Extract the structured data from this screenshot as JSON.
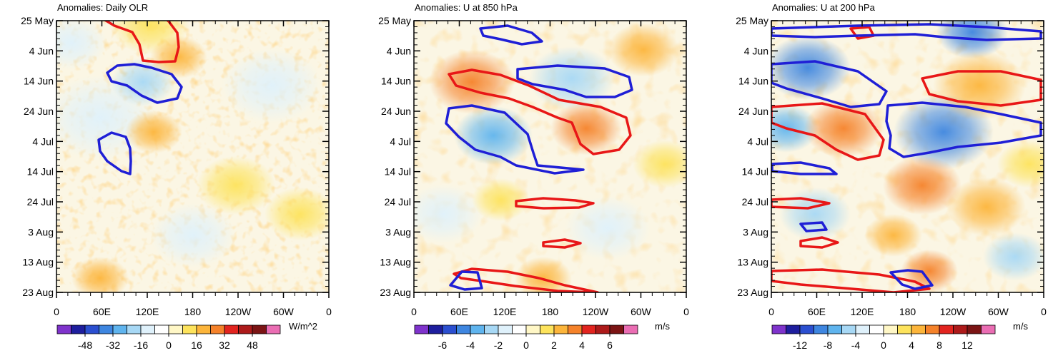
{
  "figure": {
    "colors": {
      "levels": [
        "#7f33cc",
        "#1e1e9e",
        "#2b4fd0",
        "#3e86e0",
        "#5fb4ee",
        "#a7d8f5",
        "#dff1fb",
        "#ffffff",
        "#fff7c6",
        "#fde35c",
        "#fcb53b",
        "#f5822a",
        "#e2241f",
        "#ad1a1a",
        "#7b1414",
        "#ea6db3"
      ],
      "positive_contour": "#e81717",
      "negative_contour": "#1f1fd6"
    },
    "shared_y_axis": {
      "ticks": [
        "25 May",
        "4 Jun",
        "14 Jun",
        "24 Jun",
        "4 Jul",
        "14 Jul",
        "24 Jul",
        "3 Aug",
        "13 Aug",
        "23 Aug"
      ]
    },
    "shared_x_axis": {
      "ticks": [
        "0",
        "60E",
        "120E",
        "180",
        "120W",
        "60W",
        "0"
      ]
    }
  },
  "chart_data": [
    {
      "type": "heatmap",
      "title": "Anomalies: Daily OLR",
      "variable": "OLR anomaly",
      "units": "W/m^2",
      "x_range": [
        0,
        360
      ],
      "y_range": [
        "25 May",
        "23 Aug"
      ],
      "colorbar_labels": [
        "-48",
        "-32",
        "-16",
        "0",
        "16",
        "32",
        "48"
      ],
      "contours": {
        "positive": [
          [
            140,
            14,
            178,
            10,
            208,
            12,
            222,
            18,
            236,
            30,
            248,
            46,
            250,
            66,
            245,
            86,
            222,
            87,
            200,
            85,
            195,
            62,
            185,
            45,
            160,
            36,
            140,
            24
          ]
        ],
        "negative": [
          [
            150,
            102,
            164,
            92,
            188,
            90,
            212,
            95,
            240,
            104,
            254,
            122,
            248,
            138,
            220,
            144,
            198,
            134,
            178,
            120,
            156,
            114
          ],
          [
            138,
            196,
            156,
            186,
            176,
            192,
            182,
            208,
            183,
            226,
            182,
            244,
            170,
            240,
            150,
            226,
            140,
            212
          ]
        ]
      },
      "field": [
        {
          "x": 140,
          "y": 165,
          "r": 80,
          "v": -14
        },
        {
          "x": 200,
          "y": 115,
          "r": 45,
          "v": -18
        },
        {
          "x": 210,
          "y": 35,
          "r": 55,
          "v": 12
        },
        {
          "x": 380,
          "y": 120,
          "r": 70,
          "v": -10
        },
        {
          "x": 330,
          "y": 260,
          "r": 55,
          "v": 14
        },
        {
          "x": 140,
          "y": 390,
          "r": 40,
          "v": 20
        },
        {
          "x": 215,
          "y": 185,
          "r": 40,
          "v": 18
        },
        {
          "x": 270,
          "y": 330,
          "r": 60,
          "v": -10
        },
        {
          "x": 420,
          "y": 300,
          "r": 50,
          "v": 12
        },
        {
          "x": 100,
          "y": 60,
          "r": 50,
          "v": -8
        },
        {
          "x": 250,
          "y": 80,
          "r": 40,
          "v": 16
        }
      ]
    },
    {
      "type": "heatmap",
      "title": "Anomalies: U at 850 hPa",
      "variable": "U anomaly",
      "units": "m/s",
      "x_range": [
        0,
        360
      ],
      "y_range": [
        "25 May",
        "23 Aug"
      ],
      "colorbar_labels": [
        "-6",
        "-4",
        "-2",
        "0",
        "2",
        "4",
        "6"
      ],
      "contours": {
        "positive": [
          [
            628,
            104,
            660,
            98,
            700,
            105,
            740,
            120,
            782,
            140,
            840,
            150,
            876,
            165,
            882,
            190,
            866,
            210,
            830,
            216,
            812,
            202,
            800,
            172,
            780,
            165,
            745,
            150,
            712,
            138,
            672,
            130,
            638,
            120
          ],
          [
            722,
            282,
            760,
            278,
            805,
            281,
            830,
            285,
            810,
            291,
            760,
            292,
            722,
            289
          ],
          [
            760,
            340,
            790,
            336,
            812,
            341,
            790,
            347,
            760,
            345
          ],
          [
            635,
            384,
            660,
            377,
            710,
            381,
            754,
            390,
            790,
            400,
            836,
            410,
            830,
            410,
            780,
            408,
            720,
            401,
            680,
            395,
            645,
            390
          ]
        ],
        "negative": [
          [
            672,
            40,
            710,
            36,
            744,
            46,
            758,
            58,
            730,
            62,
            700,
            55,
            676,
            50
          ],
          [
            724,
            97,
            780,
            92,
            846,
            96,
            880,
            108,
            884,
            126,
            860,
            136,
            820,
            136,
            790,
            126,
            745,
            118,
            724,
            110
          ],
          [
            628,
            152,
            660,
            148,
            706,
            158,
            738,
            188,
            746,
            214,
            752,
            232,
            816,
            238,
            776,
            243,
            722,
            232,
            700,
            220,
            665,
            210,
            642,
            192,
            624,
            173
          ],
          [
            630,
            400,
            646,
            381,
            668,
            382,
            674,
            404,
            650,
            406
          ]
        ]
      },
      "field": [
        {
          "x": 660,
          "y": 115,
          "r": 60,
          "v": 3.2
        },
        {
          "x": 690,
          "y": 190,
          "r": 55,
          "v": -3.5
        },
        {
          "x": 800,
          "y": 110,
          "r": 60,
          "v": -2
        },
        {
          "x": 900,
          "y": 70,
          "r": 50,
          "v": 2
        },
        {
          "x": 820,
          "y": 180,
          "r": 50,
          "v": 2.8
        },
        {
          "x": 850,
          "y": 320,
          "r": 60,
          "v": -1.5
        },
        {
          "x": 760,
          "y": 390,
          "r": 40,
          "v": 2.5
        },
        {
          "x": 620,
          "y": 300,
          "r": 55,
          "v": -1.5
        },
        {
          "x": 930,
          "y": 230,
          "r": 45,
          "v": 1.5
        },
        {
          "x": 700,
          "y": 280,
          "r": 40,
          "v": 1.5
        }
      ]
    },
    {
      "type": "heatmap",
      "title": "Anomalies: U at 200 hPa",
      "variable": "U anomaly",
      "units": "m/s",
      "x_range": [
        0,
        360
      ],
      "y_range": [
        "25 May",
        "23 Aug"
      ],
      "colorbar_labels": [
        "-12",
        "-8",
        "-4",
        "0",
        "4",
        "8",
        "12"
      ],
      "contours": {
        "positive": [
          [
            1190,
            40,
            1216,
            38,
            1222,
            50,
            1200,
            54
          ],
          [
            1290,
            110,
            1340,
            100,
            1400,
            100,
            1456,
            112,
            1456,
            140,
            1400,
            148,
            1340,
            142,
            1300,
            132
          ],
          [
            1079,
            150,
            1150,
            145,
            1210,
            160,
            1236,
            196,
            1230,
            218,
            1200,
            224,
            1170,
            210,
            1140,
            190,
            1100,
            180,
            1079,
            172
          ],
          [
            1079,
            280,
            1120,
            278,
            1160,
            285,
            1130,
            292,
            1079,
            290
          ],
          [
            1120,
            338,
            1150,
            333,
            1172,
            340,
            1150,
            347,
            1120,
            345
          ],
          [
            1079,
            380,
            1150,
            378,
            1230,
            385,
            1280,
            395,
            1300,
            405,
            1250,
            410,
            1180,
            404,
            1120,
            399,
            1079,
            394
          ]
        ],
        "negative": [
          [
            1079,
            40,
            1200,
            36,
            1300,
            34,
            1380,
            38,
            1456,
            44,
            1456,
            54,
            1380,
            56,
            1320,
            52,
            1280,
            48,
            1200,
            50,
            1140,
            52,
            1079,
            50
          ],
          [
            1079,
            90,
            1140,
            86,
            1200,
            100,
            1240,
            128,
            1230,
            146,
            1190,
            150,
            1150,
            138,
            1100,
            124,
            1079,
            116
          ],
          [
            1242,
            148,
            1290,
            144,
            1350,
            150,
            1400,
            160,
            1456,
            172,
            1456,
            190,
            1400,
            200,
            1340,
            206,
            1300,
            214,
            1264,
            220,
            1244,
            208,
            1246,
            190,
            1240,
            170
          ],
          [
            1080,
            230,
            1120,
            228,
            1160,
            236,
            1170,
            244,
            1120,
            244,
            1080,
            240
          ],
          [
            1120,
            314,
            1150,
            312,
            1156,
            322,
            1128,
            324
          ],
          [
            1246,
            382,
            1270,
            379,
            1290,
            381,
            1304,
            400,
            1280,
            405,
            1262,
            399
          ]
        ]
      },
      "field": [
        {
          "x": 1130,
          "y": 95,
          "r": 60,
          "v": -8
        },
        {
          "x": 1320,
          "y": 185,
          "r": 70,
          "v": -9
        },
        {
          "x": 1360,
          "y": 45,
          "r": 50,
          "v": -8
        },
        {
          "x": 1100,
          "y": 180,
          "r": 45,
          "v": -6
        },
        {
          "x": 1370,
          "y": 120,
          "r": 65,
          "v": 5
        },
        {
          "x": 1180,
          "y": 180,
          "r": 55,
          "v": 6
        },
        {
          "x": 1290,
          "y": 260,
          "r": 55,
          "v": 7
        },
        {
          "x": 1380,
          "y": 290,
          "r": 55,
          "v": 5
        },
        {
          "x": 1140,
          "y": 300,
          "r": 50,
          "v": -5
        },
        {
          "x": 1250,
          "y": 330,
          "r": 40,
          "v": 4
        },
        {
          "x": 1420,
          "y": 360,
          "r": 45,
          "v": -4
        },
        {
          "x": 1300,
          "y": 380,
          "r": 40,
          "v": 6
        },
        {
          "x": 1440,
          "y": 230,
          "r": 45,
          "v": 3
        }
      ]
    }
  ]
}
